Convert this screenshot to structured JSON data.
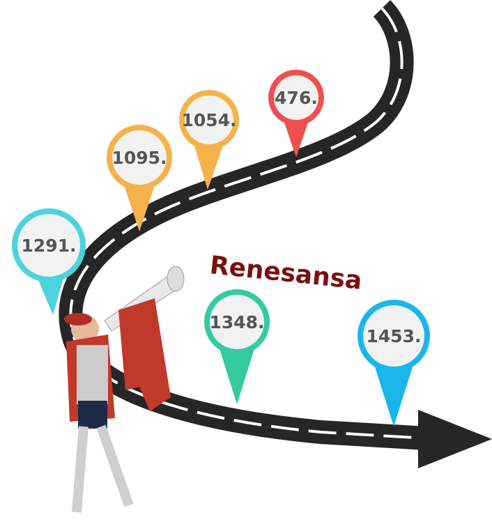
{
  "title": "Renesansa",
  "markers": [
    {
      "label": "476."
    },
    {
      "label": "1054."
    },
    {
      "label": "1095."
    },
    {
      "label": "1291."
    },
    {
      "label": "1348."
    },
    {
      "label": "1453."
    }
  ]
}
